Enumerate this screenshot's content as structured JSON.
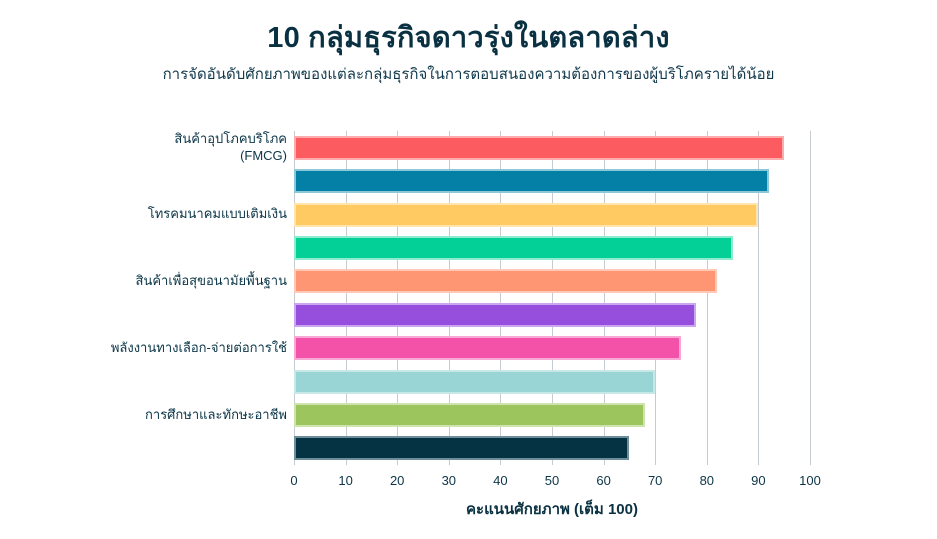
{
  "header": {
    "title": "10 กลุ่มธุรกิจดาวรุ่งในตลาดล่าง",
    "subtitle": "การจัดอันดับศักยภาพของแต่ละกลุ่มธุรกิจในการตอบสนองความต้องการของผู้บริโภครายได้น้อย"
  },
  "chart_data": {
    "type": "bar",
    "orientation": "horizontal",
    "title": "10 กลุ่มธุรกิจดาวรุ่งในตลาดล่าง",
    "subtitle": "การจัดอันดับศักยภาพของแต่ละกลุ่มธุรกิจในการตอบสนองความต้องการของผู้บริโภครายได้น้อย",
    "xlabel": "คะแนนศักยภาพ (เต็ม 100)",
    "ylabel": "",
    "xlim": [
      0,
      100
    ],
    "xticks": [
      0,
      10,
      20,
      30,
      40,
      50,
      60,
      70,
      80,
      90,
      100
    ],
    "grid": "vertical",
    "legend": "none",
    "categories": [
      "สินค้าอุปโภคบริโภค\n(FMCG)",
      "",
      "โทรคมนาคมแบบเติมเงิน",
      "",
      "สินค้าเพื่อสุขอนามัยพื้นฐาน",
      "",
      "พลังงานทางเลือก-จ่ายต่อการใช้",
      "",
      "การศึกษาและทักษะอาชีพ",
      ""
    ],
    "values": [
      95,
      92,
      90,
      85,
      82,
      78,
      75,
      70,
      68,
      65
    ],
    "bar_colors": [
      "#fc5c5f",
      "#0480a6",
      "#ffca61",
      "#02d096",
      "#ff9673",
      "#964fdc",
      "#f451a9",
      "#99d5d5",
      "#9cc55d",
      "#053344"
    ],
    "bar_border_colors": [
      "#fdabad",
      "#8cc8d8",
      "#ffe4ae",
      "#8febcf",
      "#ffc9b8",
      "#c9a6ef",
      "#faa8d4",
      "#c8e8e8",
      "#cee3ae",
      "#6e8e99"
    ]
  },
  "colors": {
    "background": "#ffffff",
    "title_text": "#0a3142",
    "body_text": "#0b3547",
    "gridline": "#c6cbd2"
  }
}
